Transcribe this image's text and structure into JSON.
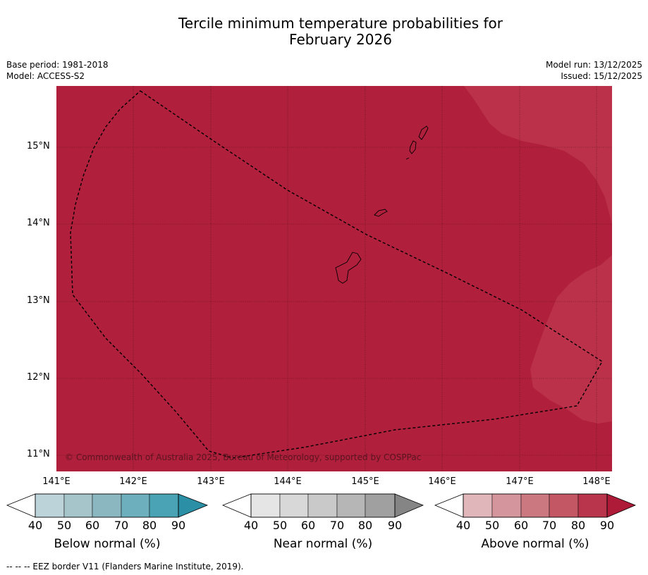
{
  "title_line1": "Tercile minimum temperature probabilities for",
  "title_line2": "February 2026",
  "meta": {
    "base_period": "Base period: 1981-2018",
    "model": "Model: ACCESS-S2",
    "model_run": "Model run: 13/12/2025",
    "issued": "Issued: 15/12/2025"
  },
  "map": {
    "lat_labels": [
      "15°N",
      "14°N",
      "13°N",
      "12°N",
      "11°N"
    ],
    "lon_labels": [
      "141°E",
      "142°E",
      "143°E",
      "144°E",
      "145°E",
      "146°E",
      "147°E",
      "148°E"
    ],
    "copyright": "© Commonwealth of Australia 2025, Bureau of Meteorology, supported by COSPPac",
    "colors": {
      "above_90": "#b01f3b",
      "above_80": "#bb3149",
      "border": "#000000"
    }
  },
  "colorbars": [
    {
      "name": "below",
      "title": "Below normal (%)",
      "ticks": [
        "40",
        "50",
        "60",
        "70",
        "80",
        "90"
      ],
      "colors": [
        "#ffffff",
        "#bcd3da",
        "#a6c5ca",
        "#8bb7c1",
        "#6eafbe",
        "#4aa3b4",
        "#2b8fa6"
      ]
    },
    {
      "name": "near",
      "title": "Near normal (%)",
      "ticks": [
        "40",
        "50",
        "60",
        "70",
        "80",
        "90"
      ],
      "colors": [
        "#ffffff",
        "#e5e5e5",
        "#d8d8d8",
        "#c9c9c9",
        "#b6b6b6",
        "#a0a0a0",
        "#858585"
      ]
    },
    {
      "name": "above",
      "title": "Above normal (%)",
      "ticks": [
        "40",
        "50",
        "60",
        "70",
        "80",
        "90"
      ],
      "colors": [
        "#ffffff",
        "#e0b6bb",
        "#d5959c",
        "#cc7880",
        "#c35864",
        "#b9354b",
        "#ae1b39"
      ]
    }
  ],
  "footnote": "--  --  -- EEZ border V11 (Flanders Marine Institute, 2019)."
}
